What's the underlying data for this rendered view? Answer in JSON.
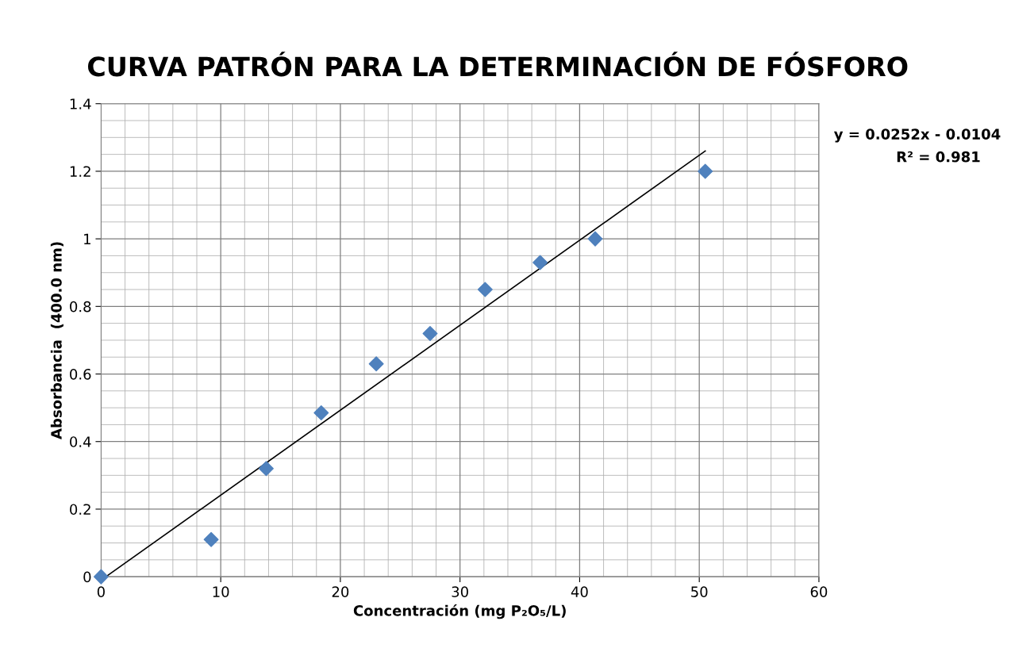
{
  "chart_data": {
    "type": "scatter",
    "title": "CURVA PATRÓN PARA LA DETERMINACIÓN DE FÓSFORO",
    "xlabel": "Concentración (mg P₂O₅/L)",
    "ylabel": "Absorbancia  (400.0 nm)",
    "annotations": [
      "y = 0.0252x - 0.0104",
      "R² = 0.981"
    ],
    "x": [
      0,
      9.2,
      13.8,
      18.4,
      23,
      27.5,
      32.1,
      36.7,
      41.3,
      50.5
    ],
    "series": [
      {
        "color": "#4f81bd",
        "marker": "diamond",
        "values": [
          0,
          0.11,
          0.32,
          0.485,
          0.63,
          0.72,
          0.85,
          0.93,
          1.0,
          1.2
        ]
      },
      {
        "type": "line",
        "color": "#000000",
        "marker": "none",
        "x": [
          0.4,
          50.5
        ],
        "values": [
          0,
          1.26
        ]
      }
    ],
    "xlim": [
      0,
      60
    ],
    "xticks": [
      0,
      10,
      20,
      30,
      40,
      50,
      60
    ],
    "ylim": [
      0,
      1.4
    ],
    "yticks": [
      0,
      0.2,
      0.4,
      0.6,
      0.8,
      1,
      1.2,
      1.4
    ],
    "grid": true
  }
}
